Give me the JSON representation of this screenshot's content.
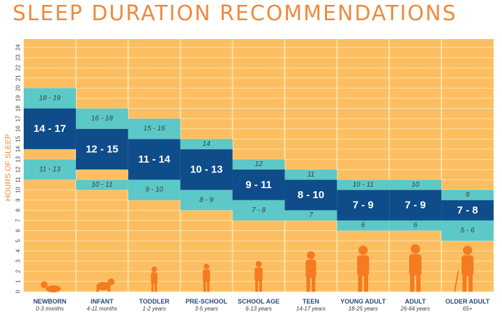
{
  "colors": {
    "background": "#FDBE62",
    "grid": "#FCE3A6",
    "recommended": "#0E4C8A",
    "may_be_appropriate": "#5CC8C8",
    "title": "#F08A3C",
    "label_dark": "#3D3D3D",
    "silhouette": "#F47B20"
  },
  "chart_data": {
    "type": "bar",
    "title": "SLEEP DURATION RECOMMENDATIONS",
    "ylabel": "HOURS OF SLEEP",
    "xlabel": "",
    "ylim": [
      0,
      24
    ],
    "yticks": [
      "0",
      "1",
      "2",
      "3",
      "4",
      "5",
      "6",
      "7",
      "8",
      "9",
      "10",
      "11",
      "12",
      "13",
      "14",
      "15",
      "16",
      "17",
      "18",
      "19",
      "20",
      "21",
      "22",
      "23",
      "24"
    ],
    "grid": true,
    "categories": [
      {
        "name": "NEWBORN",
        "age": "0-3 months",
        "icon": "infant-silhouette-icon"
      },
      {
        "name": "INFANT",
        "age": "4-11 months",
        "icon": "crawling-baby-icon"
      },
      {
        "name": "TODDLER",
        "age": "1-2 years",
        "icon": "toddler-silhouette-icon"
      },
      {
        "name": "PRE-SCHOOL",
        "age": "3-5 years",
        "icon": "preschooler-silhouette-icon"
      },
      {
        "name": "SCHOOL AGE",
        "age": "6-13 years",
        "icon": "child-silhouette-icon"
      },
      {
        "name": "TEEN",
        "age": "14-17 years",
        "icon": "teen-silhouette-icon"
      },
      {
        "name": "YOUNG ADULT",
        "age": "18-25 years",
        "icon": "young-adult-silhouette-icon"
      },
      {
        "name": "ADULT",
        "age": "26-64 years",
        "icon": "adult-silhouette-icon"
      },
      {
        "name": "OLDER ADULT",
        "age": "65+",
        "icon": "older-adult-silhouette-icon"
      }
    ],
    "series": [
      {
        "role": "may_be_appropriate_low",
        "ranges": [
          [
            11,
            13
          ],
          [
            10,
            11
          ],
          [
            9,
            11
          ],
          [
            8,
            10
          ],
          [
            7,
            9
          ],
          [
            7,
            8
          ],
          [
            6,
            7
          ],
          [
            6,
            7
          ],
          [
            5,
            7
          ]
        ],
        "labels": [
          "11 - 13",
          "10 - 11",
          "9 - 10",
          "8 - 9",
          "7 - 8",
          "7",
          "6",
          "6",
          "5 - 6"
        ]
      },
      {
        "role": "recommended",
        "ranges": [
          [
            14,
            18
          ],
          [
            12,
            16
          ],
          [
            11,
            15
          ],
          [
            10,
            14
          ],
          [
            9,
            12
          ],
          [
            8,
            11
          ],
          [
            7,
            10
          ],
          [
            7,
            10
          ],
          [
            7,
            9
          ]
        ],
        "labels": [
          "14 - 17",
          "12 - 15",
          "11 - 14",
          "10 - 13",
          "9 - 11",
          "8 - 10",
          "7 - 9",
          "7 - 9",
          "7 - 8"
        ]
      },
      {
        "role": "may_be_appropriate_high",
        "ranges": [
          [
            18,
            20
          ],
          [
            16,
            18
          ],
          [
            15,
            17
          ],
          [
            14,
            15
          ],
          [
            12,
            13
          ],
          [
            11,
            12
          ],
          [
            10,
            11
          ],
          [
            10,
            11
          ],
          [
            9,
            10
          ]
        ],
        "labels": [
          "18 - 19",
          "16 - 18",
          "15 - 16",
          "14",
          "12",
          "11",
          "10 - 11",
          "10",
          "9"
        ]
      }
    ]
  }
}
